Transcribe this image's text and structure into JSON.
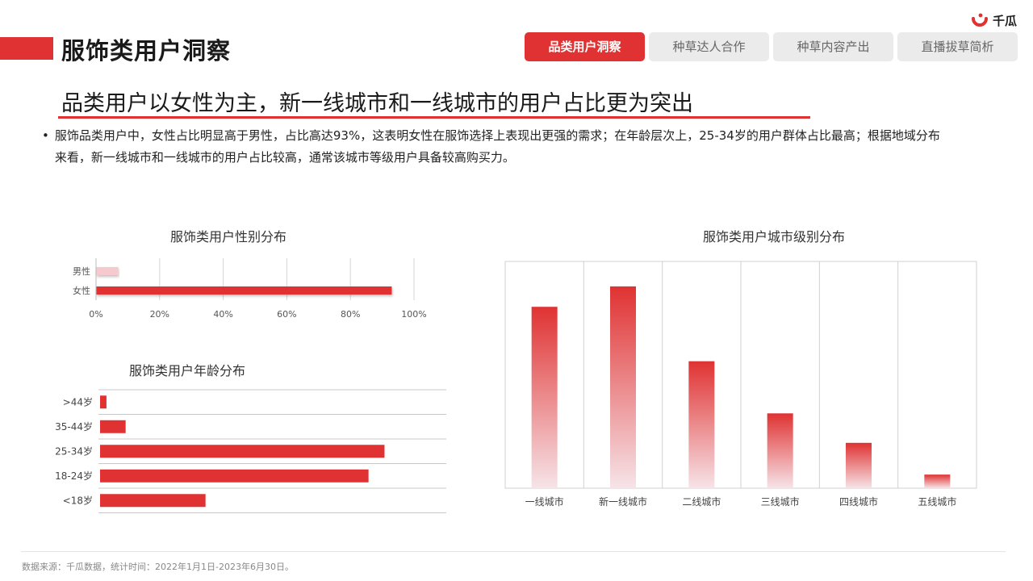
{
  "page": {
    "title": "服饰类用户洞察",
    "logo_text": "千瓜",
    "tabs": [
      {
        "label": "品类用户洞察",
        "active": true
      },
      {
        "label": "种草达人合作",
        "active": false
      },
      {
        "label": "种草内容产出",
        "active": false
      },
      {
        "label": "直播拔草简析",
        "active": false
      }
    ],
    "headline": "品类用户以女性为主，新一线城市和一线城市的用户占比更为突出",
    "body": "服饰品类用户中，女性占比明显高于男性，占比高达93%，这表明女性在服饰选择上表现出更强的需求；在年龄层次上，25-34岁的用户群体占比最高；根据地域分布来看，新一线城市和一线城市的用户占比较高，通常该城市等级用户具备较高购买力。",
    "bullet": "•",
    "footer": "数据来源：千瓜数据，统计时间：2022年1月1日-2023年6月30日。",
    "accent_color": "#e03232"
  },
  "chart_data": [
    {
      "id": "gender",
      "type": "bar",
      "orientation": "horizontal",
      "title": "服饰类用户性别分布",
      "categories": [
        "男性",
        "女性"
      ],
      "values": [
        7,
        93
      ],
      "unit": "%",
      "xlim": [
        0,
        100
      ],
      "xticks": [
        "0%",
        "20%",
        "40%",
        "60%",
        "80%",
        "100%"
      ],
      "grid": true,
      "colors": [
        "#f6c9cf",
        "#e03232"
      ]
    },
    {
      "id": "age",
      "type": "bar",
      "orientation": "horizontal",
      "title": "服饰类用户年龄分布",
      "categories": [
        ">44岁",
        "35-44岁",
        "25-34岁",
        "18-24岁",
        "<18岁"
      ],
      "values": [
        2,
        8,
        89,
        84,
        33
      ],
      "color": "#e03232"
    },
    {
      "id": "city",
      "type": "bar",
      "orientation": "vertical",
      "title": "服饰类用户城市级别分布",
      "categories": [
        "一线城市",
        "新一线城市",
        "二线城市",
        "三线城市",
        "四线城市",
        "五线城市"
      ],
      "values": [
        80,
        89,
        56,
        33,
        20,
        6
      ],
      "color_top": "#e03232",
      "color_bottom": "#f6e4e8"
    }
  ]
}
